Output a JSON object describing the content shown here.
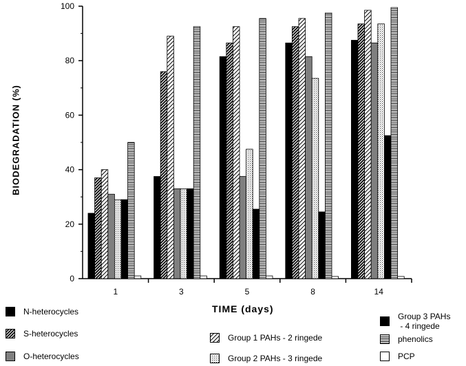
{
  "chart_data": {
    "type": "bar",
    "title": "",
    "xlabel": "TIME (days)",
    "ylabel": "BIODEGRADATION (%)",
    "ylim": [
      0,
      100
    ],
    "yticks": [
      "0",
      "20",
      "40",
      "60",
      "80",
      "100"
    ],
    "categories": [
      "1",
      "3",
      "5",
      "8",
      "14"
    ],
    "series": [
      {
        "name": "N-heterocycles",
        "values": [
          24,
          37.5,
          81.5,
          86.5,
          87.5
        ],
        "pattern": "solid"
      },
      {
        "name": "S-heterocycles",
        "values": [
          37,
          76,
          86.5,
          92.5,
          93.5
        ],
        "pattern": "dense-diag"
      },
      {
        "name": "Group 1 PAHs - 2 ringede",
        "values": [
          40,
          89,
          92.5,
          95.5,
          98.5
        ],
        "pattern": "diag"
      },
      {
        "name": "O-heterocycles",
        "values": [
          31,
          33,
          37.5,
          81.5,
          86.5
        ],
        "pattern": "dots"
      },
      {
        "name": "Group 2 PAHs - 3 ringede",
        "values": [
          29,
          33,
          47.5,
          73.5,
          93.5
        ],
        "pattern": "light-dots"
      },
      {
        "name": "Group 3 PAHs - 4 ringede",
        "values": [
          29,
          33,
          25.5,
          24.5,
          52.5
        ],
        "pattern": "solid"
      },
      {
        "name": "phenolics",
        "values": [
          50,
          92.5,
          95.5,
          97.5,
          99.5
        ],
        "pattern": "hlines"
      },
      {
        "name": "PCP",
        "values": [
          1,
          1,
          1,
          0.8,
          0.8
        ],
        "pattern": "white"
      }
    ],
    "legend": [
      {
        "label": "N-heterocycles",
        "pattern": "solid"
      },
      {
        "label": "S-heterocycles",
        "pattern": "dense-diag"
      },
      {
        "label": "O-heterocycles",
        "pattern": "dots"
      },
      {
        "label": "Group 1 PAHs - 2 ringede",
        "pattern": "diag"
      },
      {
        "label": "Group 2 PAHs - 3 ringede",
        "pattern": "light-dots"
      },
      {
        "label": "Group 3 PAHs\n - 4 ringede",
        "pattern": "solid"
      },
      {
        "label": "phenolics",
        "pattern": "hlines"
      },
      {
        "label": "PCP",
        "pattern": "white"
      }
    ],
    "grid": false,
    "legend_position": "bottom"
  }
}
